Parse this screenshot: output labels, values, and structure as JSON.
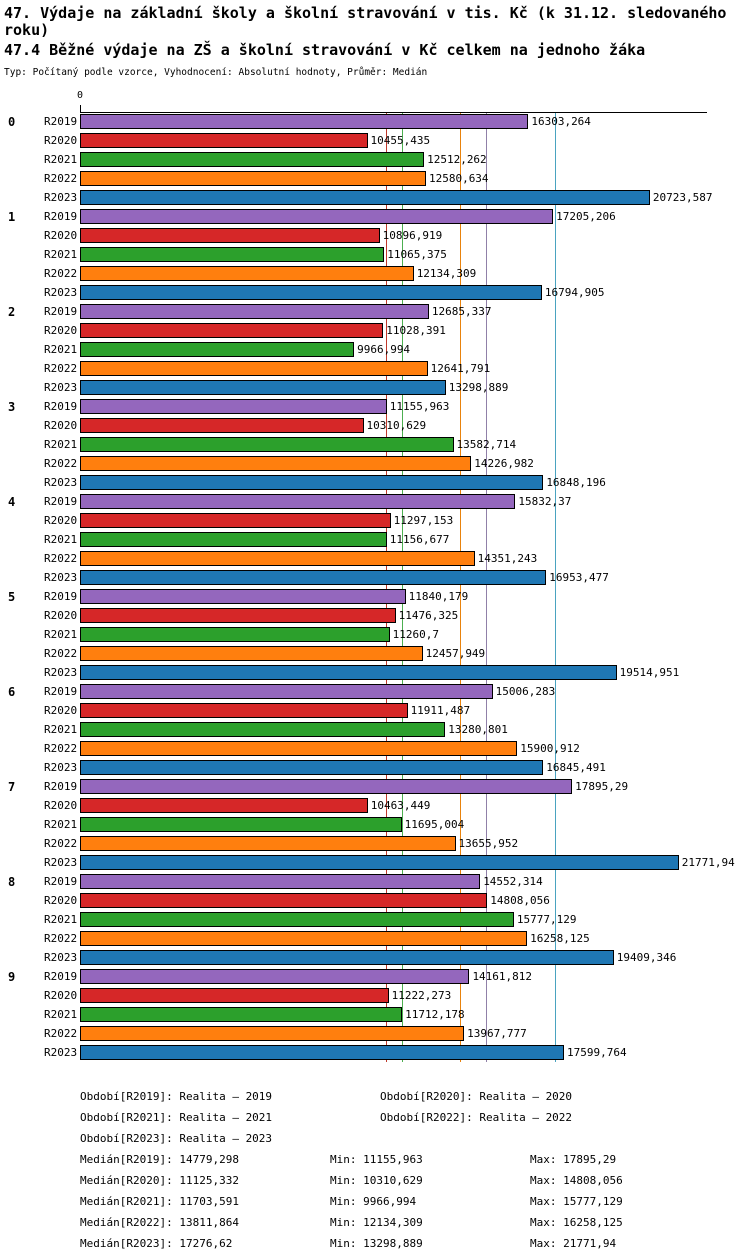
{
  "header": {
    "title": "47. Výdaje na základní školy a školní stravování v tis. Kč (k 31.12. sledovaného roku)",
    "subtitle": "47.4 Běžné výdaje na ZŠ a školní stravování v Kč celkem na jednoho žáka",
    "meta": "Typ: Počítaný podle vzorce, Vyhodnocení: Absolutní hodnoty, Průměr: Medián"
  },
  "axis": {
    "zero_label": "0"
  },
  "chart_data": {
    "type": "bar",
    "orientation": "horizontal",
    "xlim": [
      0,
      22800
    ],
    "grid": false,
    "legend_position": "bottom",
    "categories": [
      "0",
      "1",
      "2",
      "3",
      "4",
      "5",
      "6",
      "7",
      "8",
      "9"
    ],
    "labels": {
      "min": "Min:",
      "max": "Max:"
    },
    "series": [
      {
        "name": "R2019",
        "color": "#9467bd",
        "line_color": "#9080a8",
        "legend_label": "Období[R2019]:",
        "legend_value": "Realita – 2019",
        "median_label": "Medián[R2019]:",
        "median": "14779,298",
        "min": "11155,963",
        "max": "17895,29",
        "values": [
          "16303,264",
          "17205,206",
          "12685,337",
          "11155,963",
          "15832,37",
          "11840,179",
          "15006,283",
          "17895,29",
          "14552,314",
          "14161,812"
        ]
      },
      {
        "name": "R2020",
        "color": "#d62728",
        "line_color": "#c0392b",
        "legend_label": "Období[R2020]:",
        "legend_value": "Realita – 2020",
        "median_label": "Medián[R2020]:",
        "median": "11125,332",
        "min": "10310,629",
        "max": "14808,056",
        "values": [
          "10455,435",
          "10896,919",
          "11028,391",
          "10310,629",
          "11297,153",
          "11476,325",
          "11911,487",
          "10463,449",
          "14808,056",
          "11222,273"
        ]
      },
      {
        "name": "R2021",
        "color": "#2ca02c",
        "line_color": "#4caf50",
        "legend_label": "Období[R2021]:",
        "legend_value": "Realita – 2021",
        "median_label": "Medián[R2021]:",
        "median": "11703,591",
        "min": "9966,994",
        "max": "15777,129",
        "values": [
          "12512,262",
          "11065,375",
          "9966,994",
          "13582,714",
          "11156,677",
          "11260,7",
          "13280,801",
          "11695,004",
          "15777,129",
          "11712,178"
        ]
      },
      {
        "name": "R2022",
        "color": "#ff7f0e",
        "line_color": "#e8820c",
        "legend_label": "Období[R2022]:",
        "legend_value": "Realita – 2022",
        "median_label": "Medián[R2022]:",
        "median": "13811,864",
        "min": "12134,309",
        "max": "16258,125",
        "values": [
          "12580,634",
          "12134,309",
          "12641,791",
          "14226,982",
          "14351,243",
          "12457,949",
          "15900,912",
          "13655,952",
          "16258,125",
          "13967,777"
        ]
      },
      {
        "name": "R2023",
        "color": "#1f77b4",
        "line_color": "#4aa3c0",
        "legend_label": "Období[R2023]:",
        "legend_value": "Realita – 2023",
        "median_label": "Medián[R2023]:",
        "median": "17276,62",
        "min": "13298,889",
        "max": "21771,94",
        "values": [
          "20723,587",
          "16794,905",
          "13298,889",
          "16848,196",
          "16953,477",
          "19514,951",
          "16845,491",
          "21771,94",
          "19409,346",
          "17599,764"
        ]
      }
    ]
  }
}
